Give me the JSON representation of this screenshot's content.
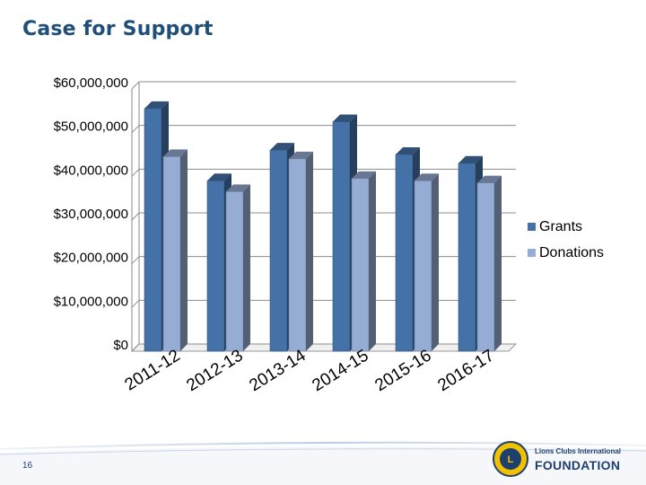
{
  "slide": {
    "title": "Case for Support",
    "page_number": "16"
  },
  "org": {
    "name_small": "Lions Clubs International",
    "name_big": "FOUNDATION"
  },
  "colors": {
    "grants": "#4472a8",
    "donations": "#95acd4",
    "title": "#1f4e79"
  },
  "chart_data": {
    "type": "bar",
    "categories": [
      "2011-12",
      "2012-13",
      "2013-14",
      "2014-15",
      "2015-16",
      "2016-17"
    ],
    "series": [
      {
        "name": "Grants",
        "values": [
          55500000,
          39000000,
          46000000,
          52500000,
          45000000,
          43000000
        ]
      },
      {
        "name": "Donations",
        "values": [
          44500000,
          36500000,
          44000000,
          39500000,
          39000000,
          38500000
        ]
      }
    ],
    "yticks": [
      "$0",
      "$10,000,000",
      "$20,000,000",
      "$30,000,000",
      "$40,000,000",
      "$50,000,000",
      "$60,000,000"
    ],
    "ylim": [
      0,
      60000000
    ],
    "grid": true,
    "legend_position": "right",
    "style": "3d-clustered-column"
  }
}
